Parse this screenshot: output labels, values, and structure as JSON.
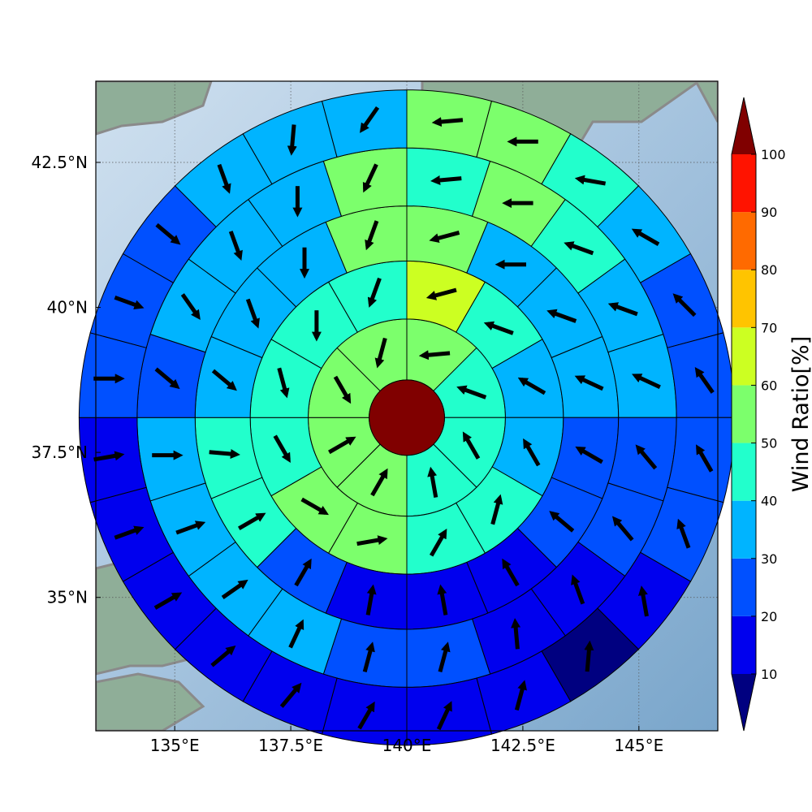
{
  "map": {
    "lon_range": [
      133.3,
      146.7
    ],
    "lat_range": [
      32.7,
      43.9
    ],
    "x_ticks": [
      {
        "value": 135,
        "label": "135°E"
      },
      {
        "value": 137.5,
        "label": "137.5°E"
      },
      {
        "value": 140,
        "label": "140°E"
      },
      {
        "value": 142.5,
        "label": "142.5°E"
      },
      {
        "value": 145,
        "label": "145°E"
      }
    ],
    "y_ticks": [
      {
        "value": 42.5,
        "label": "42.5°N"
      },
      {
        "value": 40,
        "label": "40°N"
      },
      {
        "value": 37.5,
        "label": "37.5°N"
      },
      {
        "value": 35,
        "label": "35°N"
      }
    ],
    "grid": "dotted",
    "center": {
      "lon": 140,
      "lat": 38.1
    },
    "ring_radii_deg": [
      0.65,
      1.7,
      2.7,
      3.65,
      4.65,
      5.65
    ],
    "segments_per_ring": [
      8,
      12,
      16,
      20,
      24
    ]
  },
  "colorbar": {
    "label": "Wind Ratio[%]",
    "tick_values": [
      10,
      20,
      30,
      40,
      50,
      60,
      70,
      80,
      90,
      100
    ],
    "tick_labels": [
      "10",
      "20",
      "30",
      "40",
      "50",
      "60",
      "70",
      "80",
      "90",
      "100"
    ],
    "bins": [
      {
        "range": [
          10,
          20
        ],
        "color": "#0000ee"
      },
      {
        "range": [
          20,
          30
        ],
        "color": "#0050ff"
      },
      {
        "range": [
          30,
          40
        ],
        "color": "#00b4ff"
      },
      {
        "range": [
          40,
          50
        ],
        "color": "#22ffcc"
      },
      {
        "range": [
          50,
          60
        ],
        "color": "#7cff6c"
      },
      {
        "range": [
          60,
          70
        ],
        "color": "#ccff22"
      },
      {
        "range": [
          70,
          80
        ],
        "color": "#ffc400"
      },
      {
        "range": [
          80,
          90
        ],
        "color": "#ff6a00"
      },
      {
        "range": [
          90,
          100
        ],
        "color": "#ff1300"
      }
    ],
    "under_color": "#000080",
    "over_color": "#800000"
  },
  "center_color": "#800000",
  "chart_data": {
    "type": "heatmap",
    "title": "",
    "colorbar_label": "Wind Ratio[%]",
    "rings": [
      {
        "ring": 1,
        "values": [
          55,
          42,
          40,
          40,
          55,
          55,
          55,
          55
        ],
        "wind_dir": [
          265,
          290,
          330,
          350,
          30,
          60,
          150,
          195
        ]
      },
      {
        "ring": 2,
        "values": [
          65,
          42,
          35,
          30,
          40,
          40,
          55,
          55,
          40,
          40,
          40,
          40
        ],
        "wind_dir": [
          255,
          290,
          300,
          330,
          15,
          30,
          80,
          120,
          150,
          165,
          180,
          200
        ]
      },
      {
        "ring": 3,
        "values": [
          55,
          30,
          35,
          30,
          25,
          20,
          15,
          15,
          15,
          25,
          40,
          40,
          30,
          30,
          30,
          55
        ],
        "wind_dir": [
          255,
          270,
          290,
          295,
          300,
          310,
          330,
          350,
          10,
          30,
          60,
          95,
          130,
          160,
          180,
          200
        ]
      },
      {
        "ring": 4,
        "values": [
          45,
          55,
          45,
          30,
          30,
          25,
          20,
          10,
          10,
          20,
          20,
          30,
          30,
          30,
          30,
          25,
          30,
          30,
          35,
          55
        ],
        "wind_dir": [
          265,
          270,
          290,
          290,
          295,
          320,
          320,
          340,
          355,
          15,
          15,
          25,
          55,
          70,
          90,
          130,
          145,
          160,
          180,
          205
        ]
      },
      {
        "ring": 5,
        "values": [
          55,
          55,
          40,
          30,
          25,
          25,
          20,
          20,
          15,
          5,
          15,
          15,
          15,
          15,
          15,
          15,
          15,
          10,
          20,
          20,
          25,
          30,
          30,
          30
        ],
        "wind_dir": [
          265,
          270,
          280,
          300,
          315,
          325,
          330,
          340,
          350,
          5,
          15,
          25,
          30,
          40,
          50,
          60,
          70,
          80,
          90,
          110,
          130,
          160,
          185,
          215
        ]
      }
    ]
  }
}
